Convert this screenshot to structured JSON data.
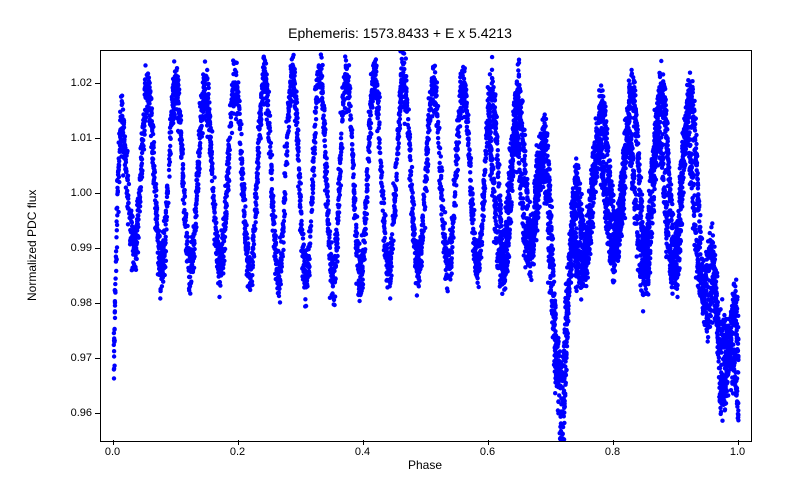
{
  "chart": {
    "type": "scatter",
    "title": "Ephemeris: 1573.8433 + E x 5.4213",
    "title_fontsize": 14,
    "xlabel": "Phase",
    "ylabel": "Normalized PDC flux",
    "label_fontsize": 12,
    "tick_fontsize": 11,
    "xlim": [
      -0.02,
      1.02
    ],
    "ylim": [
      0.955,
      1.026
    ],
    "xticks": [
      0.0,
      0.2,
      0.4,
      0.6,
      0.8,
      1.0
    ],
    "yticks": [
      0.96,
      0.97,
      0.98,
      0.99,
      1.0,
      1.01,
      1.02
    ],
    "ytick_labels": [
      "0.96",
      "0.97",
      "0.98",
      "0.99",
      "1.00",
      "1.01",
      "1.02"
    ],
    "xtick_labels": [
      "0.0",
      "0.2",
      "0.4",
      "0.6",
      "0.8",
      "1.0"
    ],
    "marker_color": "#0000ff",
    "marker_size": 2.2,
    "background_color": "#ffffff",
    "plot_border_color": "#000000",
    "text_color": "#000000",
    "n_oscillations": 22,
    "oscillation_amplitude": 0.016,
    "baseline": 1.003,
    "scatter_spread": 0.0025,
    "primary_dip_phase": 0.0,
    "primary_dip_depth": 0.965,
    "secondary_dip_phase_a": 0.72,
    "secondary_dip_phase_b": 0.97,
    "secondary_dip_depth": 0.958,
    "points_per_phase_bin": 320
  }
}
